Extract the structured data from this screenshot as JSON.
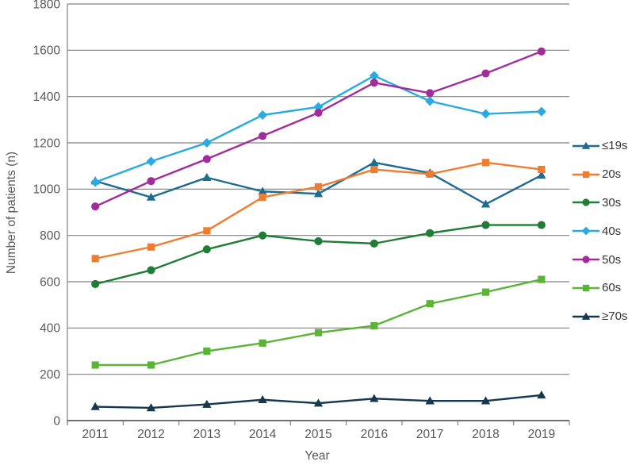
{
  "chart_data": {
    "type": "line",
    "title": "",
    "xlabel": "Year",
    "ylabel": "Number of patients (n)",
    "categories": [
      "2011",
      "2012",
      "2013",
      "2014",
      "2015",
      "2016",
      "2017",
      "2018",
      "2019"
    ],
    "ylim": [
      0,
      1800
    ],
    "yticks": [
      0,
      200,
      400,
      600,
      800,
      1000,
      1200,
      1400,
      1600,
      1800
    ],
    "grid": true,
    "legend_position": "right",
    "series": [
      {
        "name": "≤19s",
        "marker": "triangle",
        "color": "#1F6C90",
        "values": [
          1035,
          965,
          1050,
          990,
          980,
          1115,
          1070,
          935,
          1060
        ]
      },
      {
        "name": "20s",
        "marker": "square",
        "color": "#EE7D30",
        "values": [
          700,
          750,
          820,
          965,
          1010,
          1085,
          1065,
          1115,
          1085
        ]
      },
      {
        "name": "30s",
        "marker": "circle",
        "color": "#1F7D35",
        "values": [
          590,
          650,
          740,
          800,
          775,
          765,
          810,
          845,
          845
        ]
      },
      {
        "name": "40s",
        "marker": "diamond",
        "color": "#2BAAE1",
        "values": [
          1030,
          1120,
          1200,
          1320,
          1355,
          1490,
          1380,
          1325,
          1335
        ]
      },
      {
        "name": "50s",
        "marker": "circle",
        "color": "#A32C9B",
        "values": [
          925,
          1035,
          1130,
          1230,
          1330,
          1460,
          1415,
          1500,
          1595
        ]
      },
      {
        "name": "60s",
        "marker": "square",
        "color": "#5BB438",
        "values": [
          240,
          240,
          300,
          335,
          380,
          410,
          505,
          555,
          610
        ]
      },
      {
        "name": "≥70s",
        "marker": "triangle",
        "color": "#16384E",
        "values": [
          60,
          55,
          70,
          90,
          75,
          95,
          85,
          85,
          110
        ]
      }
    ]
  },
  "colors": {
    "grid": "#808080",
    "axis": "#808080",
    "baseline": "#404040",
    "tick_text": "#595959",
    "legend_text": "#333333",
    "background": "#ffffff"
  }
}
